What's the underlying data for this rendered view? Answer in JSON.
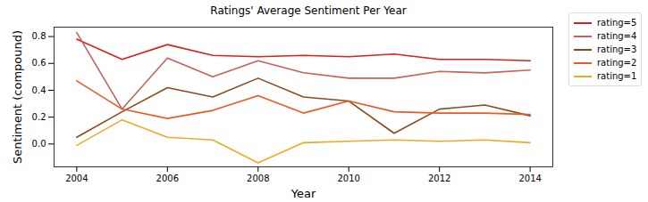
{
  "chart_data": {
    "type": "line",
    "title": "Ratings' Average Sentiment Per Year",
    "x_label": "Year",
    "y_label": "Sentiment (compound)",
    "x": [
      2004,
      2005,
      2006,
      2007,
      2008,
      2009,
      2010,
      2011,
      2012,
      2013,
      2014
    ],
    "series": [
      {
        "name": "rating=5",
        "color": "#d62218",
        "values": [
          0.78,
          0.63,
          0.74,
          0.66,
          0.65,
          0.66,
          0.65,
          0.67,
          0.63,
          0.63,
          0.62
        ]
      },
      {
        "name": "rating=4",
        "color": "#c8605c",
        "values": [
          0.83,
          0.26,
          0.64,
          0.5,
          0.62,
          0.53,
          0.49,
          0.49,
          0.54,
          0.53,
          0.55
        ]
      },
      {
        "name": "rating=3",
        "color": "#8b4a1c",
        "values": [
          0.05,
          0.24,
          0.42,
          0.35,
          0.49,
          0.35,
          0.32,
          0.08,
          0.26,
          0.29,
          0.21
        ]
      },
      {
        "name": "rating=2",
        "color": "#ea5a20",
        "values": [
          0.47,
          0.26,
          0.19,
          0.25,
          0.36,
          0.23,
          0.32,
          0.24,
          0.23,
          0.23,
          0.22
        ]
      },
      {
        "name": "rating=1",
        "color": "#eeaa22",
        "values": [
          -0.01,
          0.18,
          0.05,
          0.03,
          -0.14,
          0.01,
          0.02,
          0.03,
          0.02,
          0.03,
          0.01
        ]
      }
    ],
    "xlim": [
      2003.5,
      2014.5
    ],
    "xticks": [
      2004,
      2006,
      2008,
      2010,
      2012,
      2014
    ],
    "ylim": [
      -0.17,
      0.87
    ],
    "yticks": [
      {
        "value": 0,
        "label": "0.0"
      },
      0.2,
      0.4,
      0.6,
      0.8
    ],
    "grid": false,
    "legend": "right"
  }
}
